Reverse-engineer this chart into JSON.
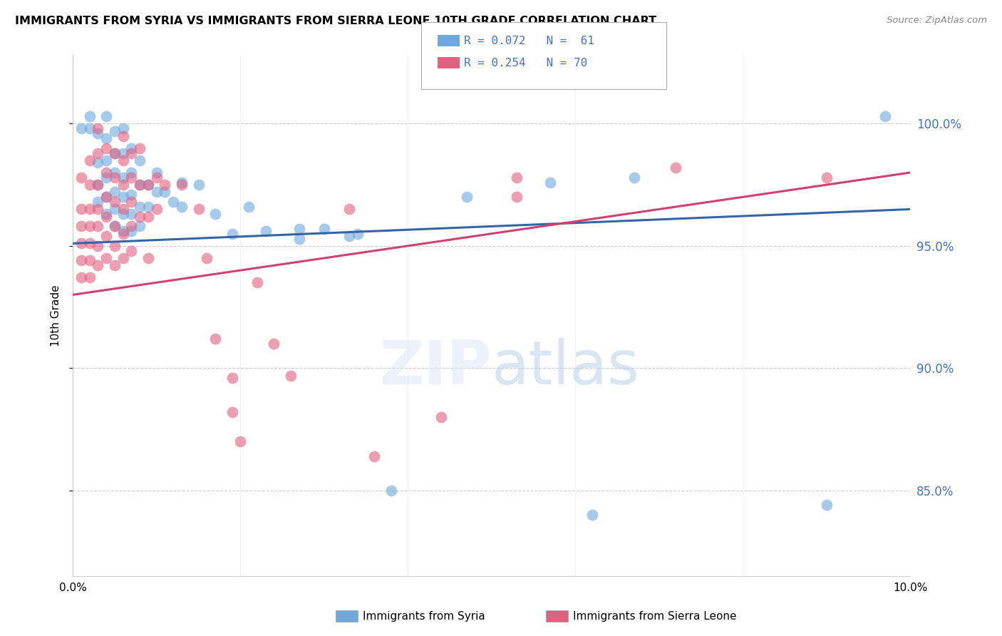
{
  "title": "IMMIGRANTS FROM SYRIA VS IMMIGRANTS FROM SIERRA LEONE 10TH GRADE CORRELATION CHART",
  "source": "Source: ZipAtlas.com",
  "ylabel": "10th Grade",
  "yticks": [
    "100.0%",
    "95.0%",
    "90.0%",
    "85.0%"
  ],
  "ytick_vals": [
    1.0,
    0.95,
    0.9,
    0.85
  ],
  "xlim": [
    0.0,
    0.1
  ],
  "ylim": [
    0.815,
    1.028
  ],
  "syria_color": "#6fa8dc",
  "sierra_leone_color": "#e06080",
  "syria_line_color": "#3465a8",
  "sierra_leone_line_color": "#d04070",
  "background_color": "#ffffff",
  "grid_color": "#cccccc",
  "syria_points": [
    [
      0.001,
      0.998
    ],
    [
      0.002,
      1.003
    ],
    [
      0.002,
      0.998
    ],
    [
      0.003,
      0.996
    ],
    [
      0.003,
      0.984
    ],
    [
      0.003,
      0.975
    ],
    [
      0.003,
      0.968
    ],
    [
      0.004,
      1.003
    ],
    [
      0.004,
      0.994
    ],
    [
      0.004,
      0.985
    ],
    [
      0.004,
      0.978
    ],
    [
      0.004,
      0.97
    ],
    [
      0.004,
      0.963
    ],
    [
      0.005,
      0.997
    ],
    [
      0.005,
      0.988
    ],
    [
      0.005,
      0.98
    ],
    [
      0.005,
      0.972
    ],
    [
      0.005,
      0.965
    ],
    [
      0.005,
      0.958
    ],
    [
      0.006,
      0.998
    ],
    [
      0.006,
      0.988
    ],
    [
      0.006,
      0.978
    ],
    [
      0.006,
      0.97
    ],
    [
      0.006,
      0.963
    ],
    [
      0.006,
      0.956
    ],
    [
      0.007,
      0.99
    ],
    [
      0.007,
      0.98
    ],
    [
      0.007,
      0.971
    ],
    [
      0.007,
      0.963
    ],
    [
      0.007,
      0.956
    ],
    [
      0.008,
      0.985
    ],
    [
      0.008,
      0.975
    ],
    [
      0.008,
      0.966
    ],
    [
      0.008,
      0.958
    ],
    [
      0.009,
      0.975
    ],
    [
      0.009,
      0.966
    ],
    [
      0.01,
      0.98
    ],
    [
      0.01,
      0.972
    ],
    [
      0.011,
      0.972
    ],
    [
      0.012,
      0.968
    ],
    [
      0.013,
      0.976
    ],
    [
      0.013,
      0.966
    ],
    [
      0.015,
      0.975
    ],
    [
      0.017,
      0.963
    ],
    [
      0.019,
      0.955
    ],
    [
      0.021,
      0.966
    ],
    [
      0.023,
      0.956
    ],
    [
      0.027,
      0.957
    ],
    [
      0.027,
      0.953
    ],
    [
      0.03,
      0.957
    ],
    [
      0.033,
      0.954
    ],
    [
      0.034,
      0.955
    ],
    [
      0.038,
      0.85
    ],
    [
      0.047,
      0.97
    ],
    [
      0.057,
      0.976
    ],
    [
      0.062,
      0.84
    ],
    [
      0.067,
      0.978
    ],
    [
      0.09,
      0.844
    ],
    [
      0.097,
      1.003
    ]
  ],
  "sierra_leone_points": [
    [
      0.001,
      0.978
    ],
    [
      0.001,
      0.965
    ],
    [
      0.001,
      0.958
    ],
    [
      0.001,
      0.951
    ],
    [
      0.001,
      0.944
    ],
    [
      0.001,
      0.937
    ],
    [
      0.002,
      0.985
    ],
    [
      0.002,
      0.975
    ],
    [
      0.002,
      0.965
    ],
    [
      0.002,
      0.958
    ],
    [
      0.002,
      0.951
    ],
    [
      0.002,
      0.944
    ],
    [
      0.002,
      0.937
    ],
    [
      0.003,
      0.998
    ],
    [
      0.003,
      0.988
    ],
    [
      0.003,
      0.975
    ],
    [
      0.003,
      0.965
    ],
    [
      0.003,
      0.958
    ],
    [
      0.003,
      0.95
    ],
    [
      0.003,
      0.942
    ],
    [
      0.004,
      0.99
    ],
    [
      0.004,
      0.98
    ],
    [
      0.004,
      0.97
    ],
    [
      0.004,
      0.962
    ],
    [
      0.004,
      0.954
    ],
    [
      0.004,
      0.945
    ],
    [
      0.005,
      0.988
    ],
    [
      0.005,
      0.978
    ],
    [
      0.005,
      0.968
    ],
    [
      0.005,
      0.958
    ],
    [
      0.005,
      0.95
    ],
    [
      0.005,
      0.942
    ],
    [
      0.006,
      0.995
    ],
    [
      0.006,
      0.985
    ],
    [
      0.006,
      0.975
    ],
    [
      0.006,
      0.965
    ],
    [
      0.006,
      0.955
    ],
    [
      0.006,
      0.945
    ],
    [
      0.007,
      0.988
    ],
    [
      0.007,
      0.978
    ],
    [
      0.007,
      0.968
    ],
    [
      0.007,
      0.958
    ],
    [
      0.007,
      0.948
    ],
    [
      0.008,
      0.99
    ],
    [
      0.008,
      0.975
    ],
    [
      0.008,
      0.962
    ],
    [
      0.009,
      0.975
    ],
    [
      0.009,
      0.962
    ],
    [
      0.009,
      0.945
    ],
    [
      0.01,
      0.978
    ],
    [
      0.01,
      0.965
    ],
    [
      0.011,
      0.975
    ],
    [
      0.013,
      0.975
    ],
    [
      0.015,
      0.965
    ],
    [
      0.016,
      0.945
    ],
    [
      0.017,
      0.912
    ],
    [
      0.019,
      0.896
    ],
    [
      0.019,
      0.882
    ],
    [
      0.02,
      0.87
    ],
    [
      0.022,
      0.935
    ],
    [
      0.024,
      0.91
    ],
    [
      0.026,
      0.897
    ],
    [
      0.033,
      0.965
    ],
    [
      0.036,
      0.864
    ],
    [
      0.044,
      0.88
    ],
    [
      0.053,
      0.978
    ],
    [
      0.053,
      0.97
    ],
    [
      0.072,
      0.982
    ],
    [
      0.09,
      0.978
    ]
  ]
}
